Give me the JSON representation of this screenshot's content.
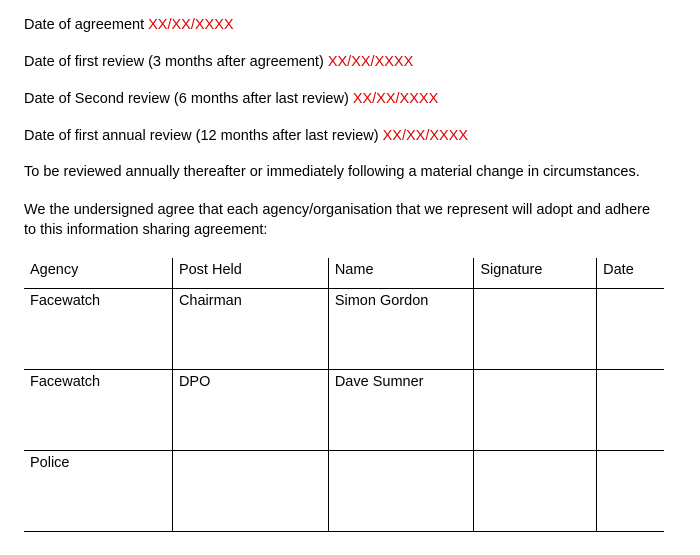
{
  "dates": {
    "agreement_label": "Date of agreement ",
    "agreement_value": "XX/XX/XXXX",
    "first_review_label": "Date of first review (3 months after agreement) ",
    "first_review_value": "XX/XX/XXXX",
    "second_review_label": "Date of Second review (6 months after last review) ",
    "second_review_value": "XX/XX/XXXX",
    "annual_review_label": "Date of first annual review (12 months after last review) ",
    "annual_review_value": "XX/XX/XXXX"
  },
  "paragraphs": {
    "review_note": "To be reviewed annually thereafter or immediately following a material change in circumstances.",
    "undersigned": "We the undersigned agree that each agency/organisation that we represent will adopt and adhere to this information sharing agreement:"
  },
  "table": {
    "headers": {
      "agency": "Agency",
      "post": "Post Held",
      "name": "Name",
      "signature": "Signature",
      "date": "Date"
    },
    "rows": [
      {
        "agency": "Facewatch",
        "post": "Chairman",
        "name": "Simon Gordon",
        "signature": "",
        "date": ""
      },
      {
        "agency": "Facewatch",
        "post": "DPO",
        "name": "Dave Sumner",
        "signature": "",
        "date": ""
      },
      {
        "agency": "Police",
        "post": "",
        "name": "",
        "signature": "",
        "date": ""
      }
    ]
  },
  "colors": {
    "text": "#000000",
    "highlight": "#e20000",
    "border": "#000000",
    "background": "#ffffff"
  }
}
